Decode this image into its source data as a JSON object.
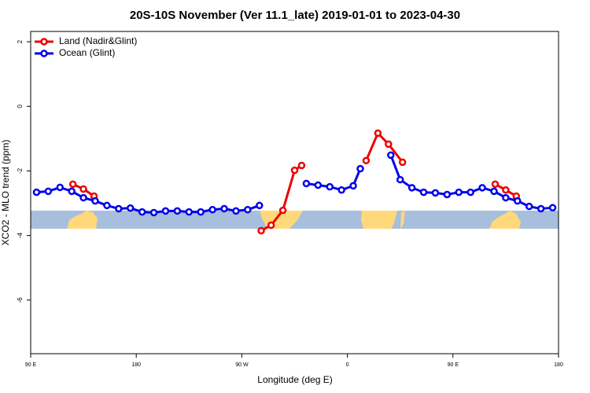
{
  "chart_data": {
    "type": "line",
    "title": "20S-10S November (Ver 11.1_late)   2019-01-01 to 2023-04-30",
    "x_label": "Longitude (deg E)",
    "y_label": "XCO2 - MLO trend (ppm)",
    "xlim": [
      90,
      540
    ],
    "xticks": [
      {
        "value": 90,
        "label": "90 E"
      },
      180,
      {
        "value": 270,
        "label": "90 W"
      },
      {
        "value": 360,
        "label": "0"
      },
      {
        "value": 450,
        "label": "90 E"
      },
      {
        "value": 540,
        "label": "180"
      }
    ],
    "ylim": [
      -7.66,
      2.32
    ],
    "yticks": [
      2,
      0,
      -2,
      -4,
      -6
    ],
    "legend": "top-left",
    "series": [
      {
        "name": "Land (Nadir&Glint)",
        "color": "#ee0000",
        "x": [
          126,
          135,
          144,
          null,
          286.5,
          295,
          305,
          315,
          321,
          null,
          376,
          386,
          395,
          407,
          null,
          486,
          495,
          504
        ],
        "values": [
          -2.41,
          -2.56,
          -2.78,
          null,
          -3.85,
          -3.68,
          -3.22,
          -1.98,
          -1.83,
          null,
          -1.68,
          -0.83,
          -1.17,
          -1.73,
          null,
          -2.41,
          -2.59,
          -2.78
        ]
      },
      {
        "name": "Ocean (Glint)",
        "color": "#0000ee",
        "x": [
          95,
          105,
          115,
          125,
          135,
          145,
          155,
          165,
          175,
          185,
          195,
          205,
          215,
          225,
          235,
          245,
          255,
          265,
          275,
          285,
          null,
          325,
          335,
          345,
          355,
          365,
          371,
          null,
          397,
          405,
          415,
          425,
          435,
          445,
          455,
          465,
          475,
          485,
          495,
          505,
          515,
          525,
          535
        ],
        "values": [
          -2.66,
          -2.63,
          -2.51,
          -2.63,
          -2.83,
          -2.93,
          -3.07,
          -3.17,
          -3.15,
          -3.27,
          -3.29,
          -3.24,
          -3.24,
          -3.27,
          -3.27,
          -3.2,
          -3.17,
          -3.24,
          -3.2,
          -3.07,
          null,
          -2.39,
          -2.44,
          -2.49,
          -2.59,
          -2.46,
          -1.93,
          null,
          -1.51,
          -2.27,
          -2.52,
          -2.66,
          -2.68,
          -2.73,
          -2.66,
          -2.66,
          -2.52,
          -2.63,
          -2.83,
          -2.93,
          -3.1,
          -3.17,
          -3.14
        ]
      }
    ]
  }
}
